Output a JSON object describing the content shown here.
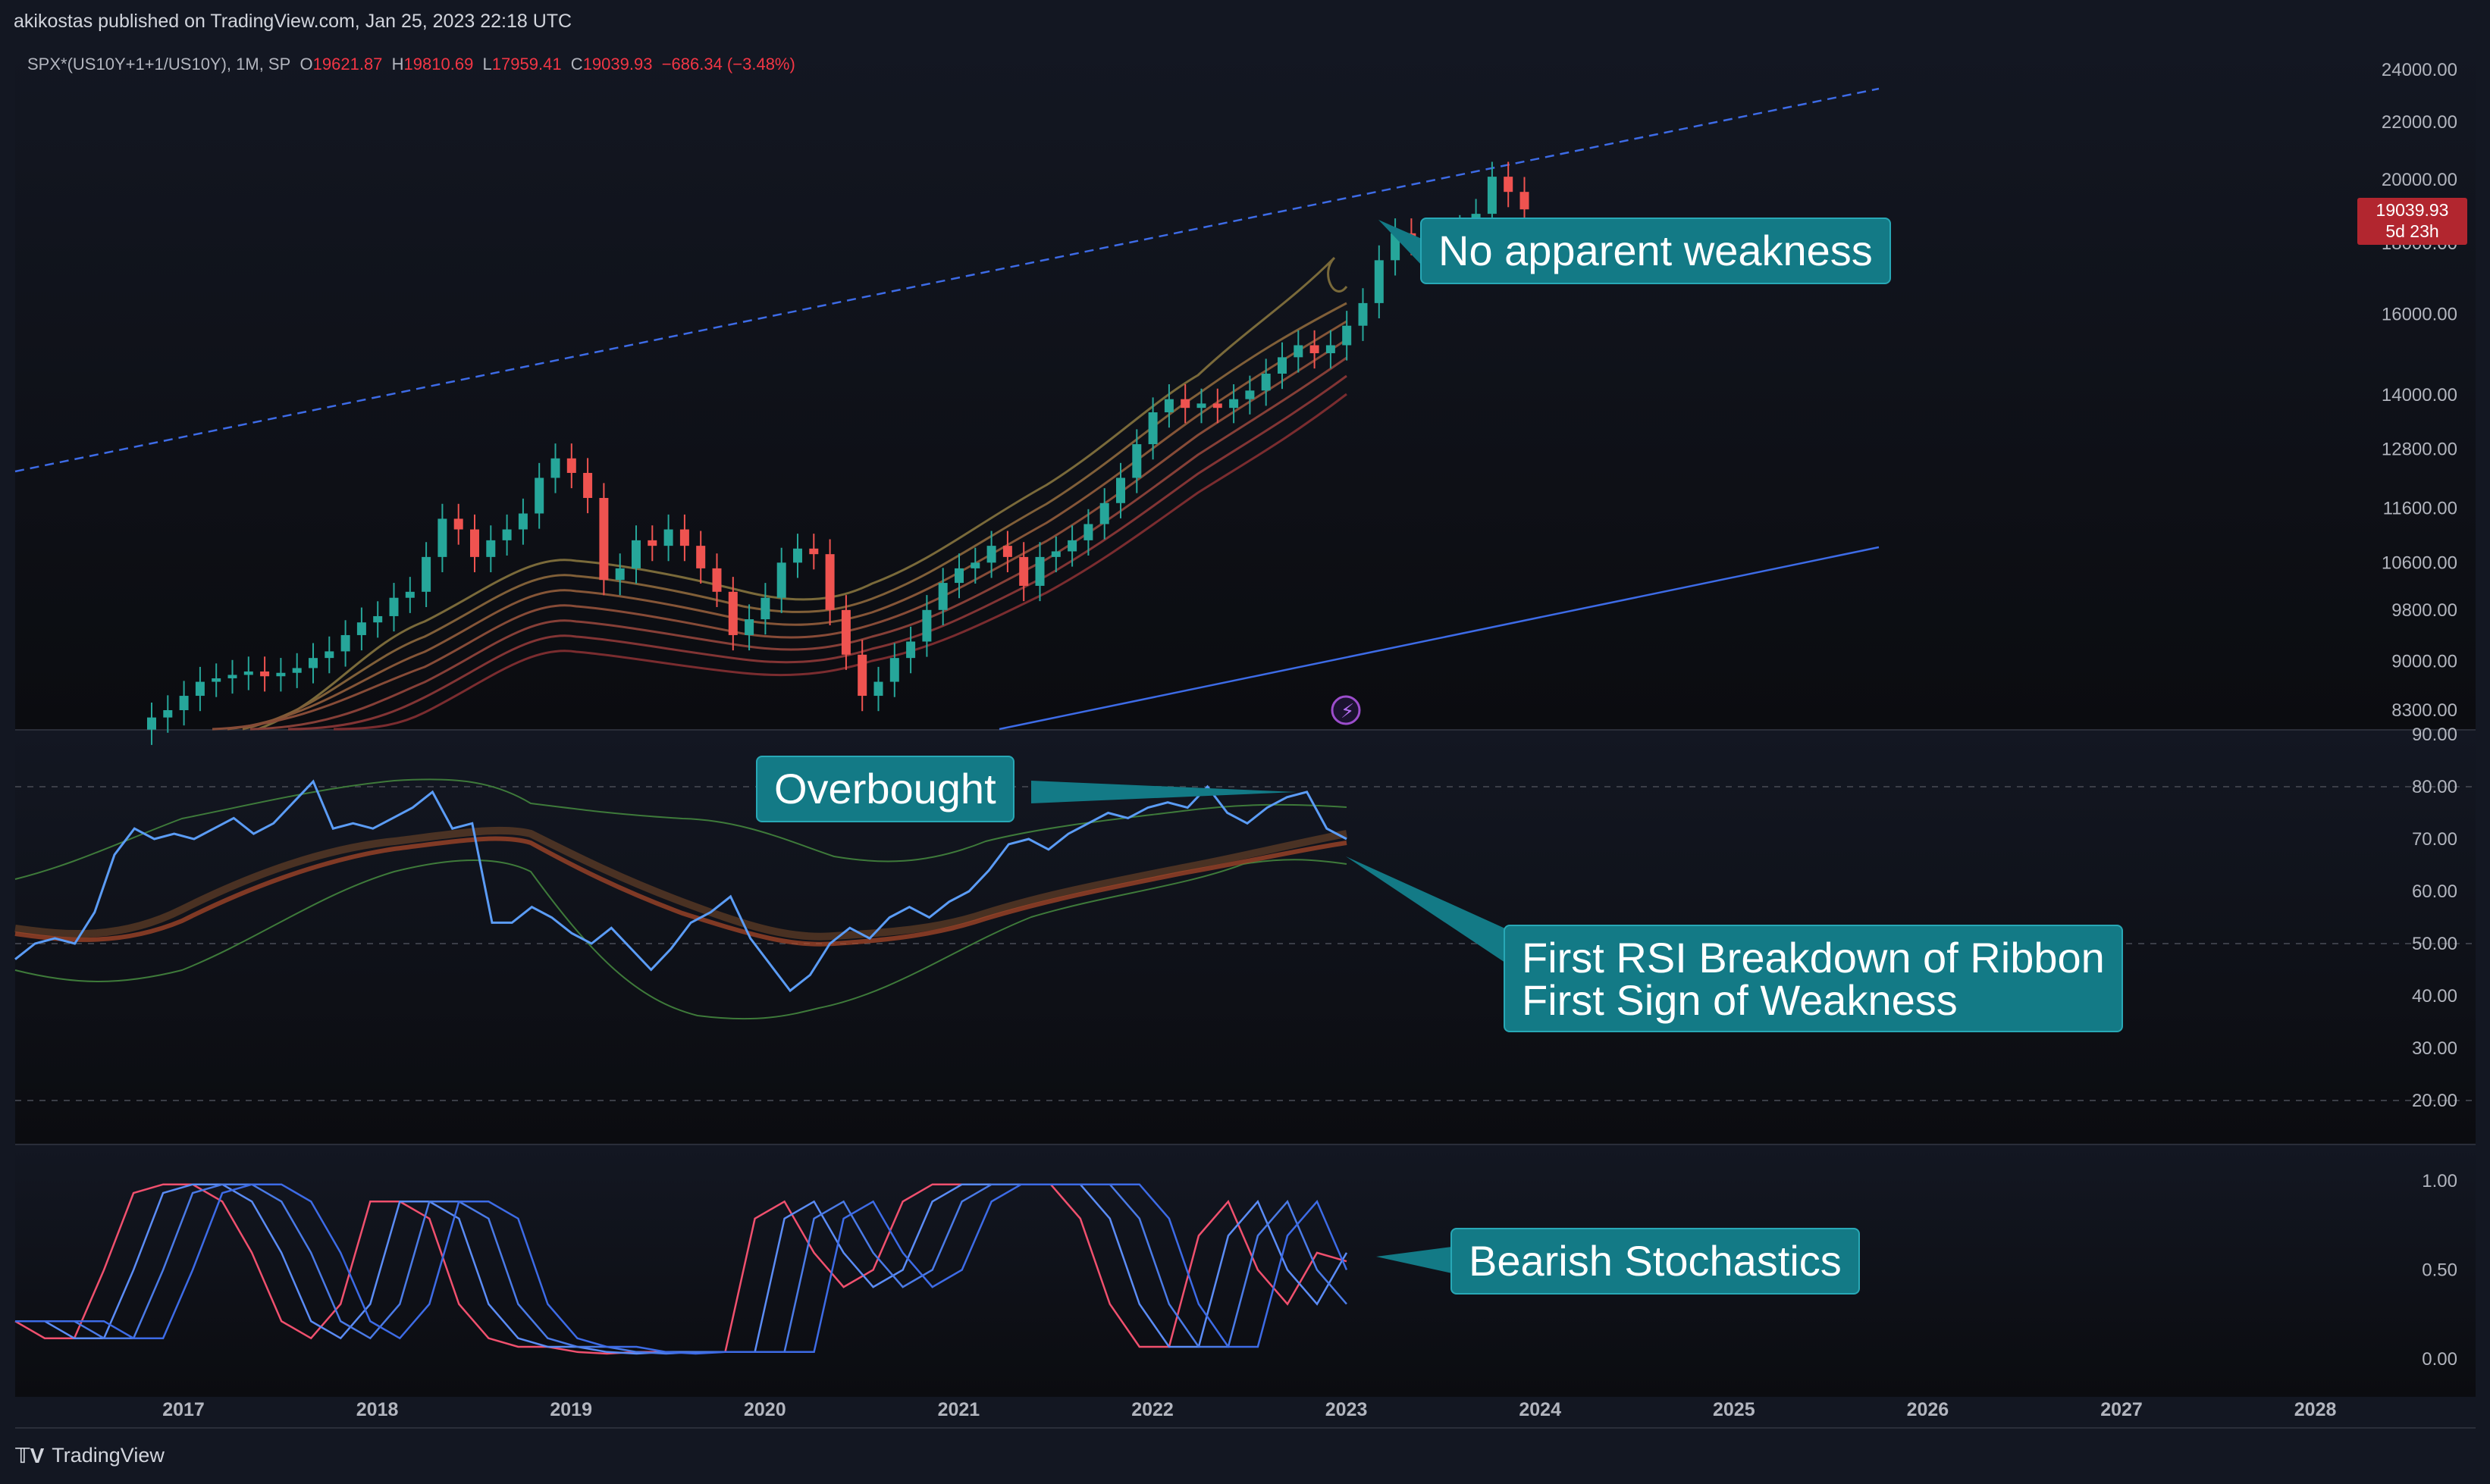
{
  "header": {
    "published": "akikostas published on TradingView.com, Jan 25, 2023 22:18 UTC"
  },
  "legend": {
    "symbol": "SPX*(US10Y+1+1/US10Y), 1M, SP",
    "o_label": "O",
    "o_value": "19621.87",
    "h_label": "H",
    "h_value": "19810.69",
    "l_label": "L",
    "l_value": "17959.41",
    "c_label": "C",
    "c_value": "19039.93",
    "change": "−686.34 (−3.48%)"
  },
  "price_tag": {
    "price": "19039.93",
    "countdown": "5d 23h"
  },
  "annotations": {
    "price": "No apparent weakness",
    "rsi_top": "Overbought",
    "rsi_line1": "First RSI Breakdown of Ribbon",
    "rsi_line2": "First Sign of Weakness",
    "stoch": "Bearish Stochastics"
  },
  "footer": {
    "brand": "TradingView"
  },
  "colors": {
    "background": "#131722",
    "up": "#26a69a",
    "down": "#ef5350",
    "rsi": "#5b9cf6",
    "trendline": "#3d6be6",
    "callout": "#137a86"
  },
  "chart_data": [
    {
      "type": "candlestick",
      "title": "SPX*(US10Y+1+1/US10Y), 1M, SP",
      "x_ticks": [
        "2017",
        "2018",
        "2019",
        "2020",
        "2021",
        "2022",
        "2023",
        "2024",
        "2025",
        "2026",
        "2027",
        "2028"
      ],
      "y_ticks": [
        "24000.00",
        "22000.00",
        "20000.00",
        "18000.00",
        "16000.00",
        "14000.00",
        "12800.00",
        "11600.00",
        "10600.00",
        "9800.00",
        "9000.00",
        "8300.00"
      ],
      "yscale": "log",
      "closes": [
        8200,
        8300,
        8500,
        8700,
        8750,
        8800,
        8850,
        8780,
        8830,
        8900,
        9050,
        9150,
        9400,
        9600,
        9700,
        10000,
        10100,
        10700,
        11400,
        11200,
        10700,
        11000,
        11200,
        11500,
        12200,
        12600,
        12300,
        11800,
        10300,
        10500,
        11000,
        10900,
        11200,
        10900,
        10500,
        10100,
        9400,
        9650,
        10000,
        10600,
        10850,
        10750,
        9800,
        9100,
        8500,
        8700,
        9050,
        9300,
        9800,
        10250,
        10500,
        10600,
        10900,
        10700,
        10200,
        10700,
        10800,
        11000,
        11300,
        11700,
        12200,
        12900,
        13600,
        13900,
        13700,
        13800,
        13700,
        13900,
        14100,
        14500,
        14900,
        15200,
        15000,
        15200,
        15700,
        16300,
        17500,
        18300,
        18100,
        17400,
        18000,
        18400,
        18900,
        20100,
        19600,
        19040
      ],
      "rsi": [
        47,
        50,
        51,
        50,
        56,
        67,
        72,
        70,
        71,
        70,
        72,
        74,
        71,
        73,
        77,
        81,
        72,
        73,
        72,
        74,
        76,
        79,
        72,
        73,
        54,
        54,
        57,
        55,
        52,
        50,
        53,
        49,
        45,
        49,
        54,
        56,
        59,
        51,
        46,
        41,
        44,
        50,
        53,
        51,
        55,
        57,
        55,
        58,
        60,
        64,
        69,
        70,
        68,
        71,
        73,
        75,
        74,
        76,
        77,
        76,
        80,
        75,
        73,
        76,
        78,
        79,
        72,
        70
      ],
      "stoch_k": [
        0.2,
        0.1,
        0.1,
        0.5,
        0.95,
        1.0,
        1.0,
        0.9,
        0.6,
        0.2,
        0.1,
        0.3,
        0.9,
        0.9,
        0.8,
        0.3,
        0.1,
        0.05,
        0.05,
        0.02,
        0.01,
        0.02,
        0.02,
        0.02,
        0.02,
        0.8,
        0.9,
        0.6,
        0.4,
        0.5,
        0.9,
        1.0,
        1.0,
        1.0,
        1.0,
        1.0,
        0.8,
        0.3,
        0.05,
        0.05,
        0.7,
        0.9,
        0.5,
        0.3,
        0.6,
        0.55
      ]
    }
  ]
}
